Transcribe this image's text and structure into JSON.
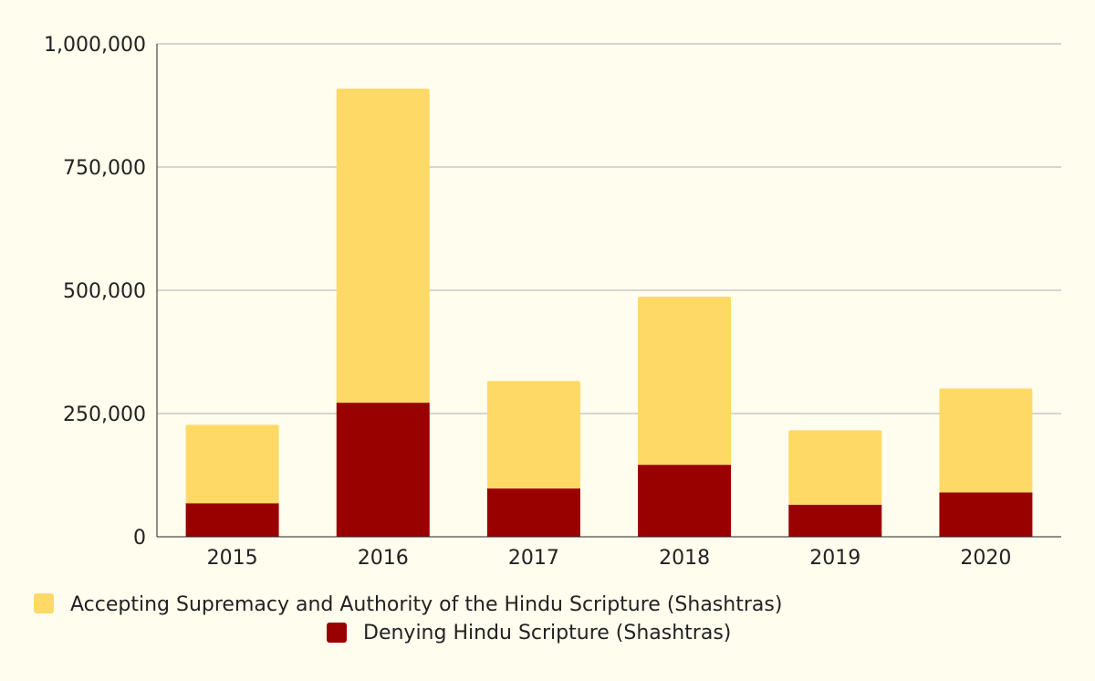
{
  "chart_data": {
    "type": "bar",
    "stacked": true,
    "title": "",
    "xlabel": "",
    "ylabel": "",
    "categories": [
      "2015",
      "2016",
      "2017",
      "2018",
      "2019",
      "2020"
    ],
    "series": [
      {
        "name": "Denying Hindu Scripture (Shashtras)",
        "color": "#990000",
        "values": [
          68000,
          272000,
          98000,
          146000,
          65000,
          90000
        ]
      },
      {
        "name": "Accepting Supremacy and Authority of the Hindu Scripture (Shashtras)",
        "color": "#ffd966",
        "values": [
          159000,
          637000,
          218000,
          341000,
          151000,
          211000
        ]
      }
    ],
    "ylim": [
      0,
      1000000
    ],
    "yticks": [
      0,
      250000,
      500000,
      750000,
      1000000
    ],
    "ytick_labels": [
      "0",
      "250,000",
      "500,000",
      "750,000",
      "1,000,000"
    ],
    "grid": true,
    "legend_position": "bottom",
    "legend": [
      {
        "label": "Accepting Supremacy and Authority of the Hindu Scripture (Shashtras)",
        "color": "#ffd966"
      },
      {
        "label": "Denying Hindu Scripture (Shashtras)",
        "color": "#990000"
      }
    ]
  },
  "colors": {
    "background": "#fffdee",
    "grid": "#bdbdbd",
    "axis": "#222222",
    "text": "#222222"
  }
}
